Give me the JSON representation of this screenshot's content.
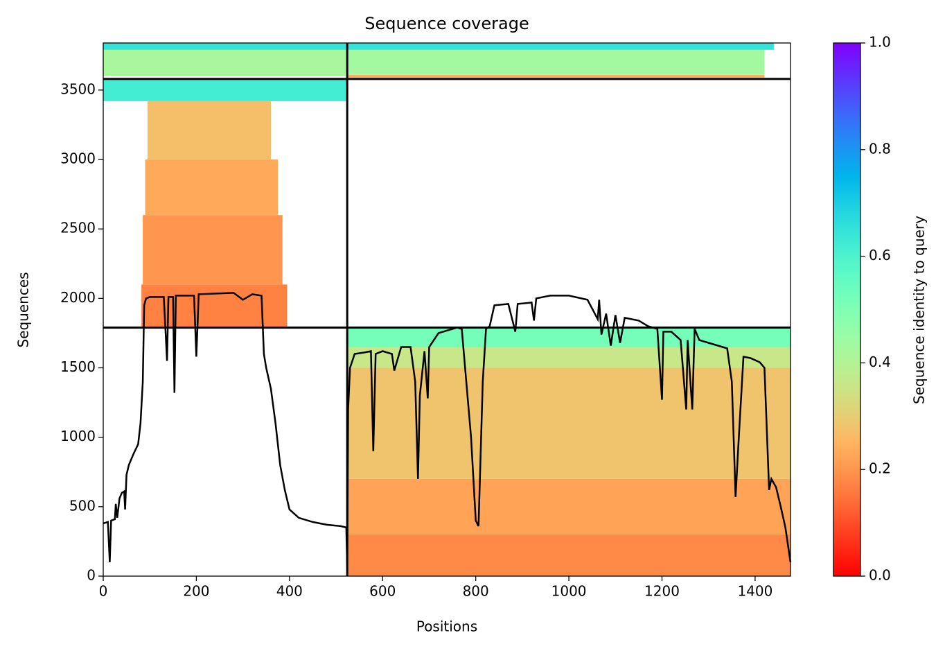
{
  "chart_data": {
    "type": "coverage",
    "title": "Sequence coverage",
    "xlabel": "Positions",
    "ylabel": "Sequences",
    "colorbar_label": "Sequence identity to query",
    "xlim": [
      0,
      1476
    ],
    "ylim": [
      0,
      3839
    ],
    "xticks": [
      0,
      200,
      400,
      600,
      800,
      1000,
      1200,
      1400
    ],
    "yticks": [
      0,
      500,
      1000,
      1500,
      2000,
      2500,
      3000,
      3500
    ],
    "clim": [
      0,
      1
    ],
    "cticks": [
      {
        "value": 0,
        "label": "0.0"
      },
      {
        "value": 0.2,
        "label": "0.2"
      },
      {
        "value": 0.4,
        "label": "0.4"
      },
      {
        "value": 0.6,
        "label": "0.6"
      },
      {
        "value": 0.8,
        "label": "0.8"
      },
      {
        "value": 1,
        "label": "1.0"
      }
    ],
    "colormap": "rainbow_r",
    "blocks": [
      {
        "x": [
          82,
          395
        ],
        "y": [
          1790,
          2100
        ],
        "identity": 0.17
      },
      {
        "x": [
          85,
          385
        ],
        "y": [
          2100,
          2600
        ],
        "identity": 0.2
      },
      {
        "x": [
          90,
          375
        ],
        "y": [
          2600,
          3000
        ],
        "identity": 0.23
      },
      {
        "x": [
          95,
          360
        ],
        "y": [
          3000,
          3420
        ],
        "identity": 0.27
      },
      {
        "x": [
          0,
          524
        ],
        "y": [
          3420,
          3580
        ],
        "identity": 0.62
      },
      {
        "x": [
          524,
          1476
        ],
        "y": [
          0,
          300
        ],
        "identity": 0.18
      },
      {
        "x": [
          524,
          1476
        ],
        "y": [
          300,
          700
        ],
        "identity": 0.22
      },
      {
        "x": [
          524,
          1476
        ],
        "y": [
          700,
          1500
        ],
        "identity": 0.28
      },
      {
        "x": [
          524,
          1476
        ],
        "y": [
          1500,
          1650
        ],
        "identity": 0.36
      },
      {
        "x": [
          524,
          1476
        ],
        "y": [
          1650,
          1790
        ],
        "identity": 0.52
      },
      {
        "x": [
          0,
          524
        ],
        "y": [
          3600,
          3790
        ],
        "identity": 0.42
      },
      {
        "x": [
          524,
          1420
        ],
        "y": [
          3590,
          3610
        ],
        "identity": 0.24
      },
      {
        "x": [
          524,
          1420
        ],
        "y": [
          3610,
          3790
        ],
        "identity": 0.43
      },
      {
        "x": [
          0,
          1440
        ],
        "y": [
          3790,
          3839
        ],
        "identity": 0.65
      }
    ],
    "hlines": [
      1790,
      3580
    ],
    "vlines": [
      524
    ],
    "line": {
      "color": "#000000",
      "x": [
        0,
        10,
        14,
        17,
        25,
        27,
        30,
        35,
        40,
        45,
        47,
        50,
        55,
        65,
        75,
        80,
        85,
        88,
        92,
        100,
        130,
        137,
        140,
        150,
        153,
        156,
        195,
        200,
        205,
        280,
        300,
        320,
        340,
        345,
        350,
        360,
        370,
        380,
        390,
        400,
        420,
        450,
        480,
        510,
        522,
        524,
        526,
        530,
        540,
        560,
        575,
        580,
        585,
        600,
        620,
        625,
        640,
        660,
        670,
        676,
        680,
        690,
        697,
        700,
        720,
        760,
        770,
        790,
        800,
        806,
        815,
        822,
        830,
        840,
        870,
        885,
        890,
        920,
        925,
        930,
        960,
        1000,
        1040,
        1062,
        1065,
        1070,
        1080,
        1090,
        1100,
        1110,
        1120,
        1150,
        1170,
        1190,
        1200,
        1203,
        1220,
        1240,
        1252,
        1255,
        1265,
        1270,
        1280,
        1300,
        1340,
        1350,
        1358,
        1365,
        1375,
        1390,
        1410,
        1420,
        1430,
        1435,
        1445,
        1455,
        1465,
        1476
      ],
      "values": [
        380,
        390,
        100,
        400,
        410,
        520,
        420,
        560,
        600,
        610,
        480,
        730,
        800,
        880,
        950,
        1100,
        1400,
        1950,
        2000,
        2010,
        2010,
        1550,
        2010,
        2010,
        1320,
        2020,
        2020,
        1580,
        2030,
        2040,
        1990,
        2030,
        2020,
        1600,
        1500,
        1350,
        1100,
        800,
        620,
        480,
        420,
        390,
        370,
        360,
        350,
        60,
        1200,
        1500,
        1600,
        1610,
        1620,
        900,
        1600,
        1620,
        1600,
        1480,
        1650,
        1650,
        1400,
        700,
        1300,
        1620,
        1280,
        1650,
        1750,
        1790,
        1780,
        1000,
        400,
        360,
        1400,
        1780,
        1800,
        1950,
        1960,
        1760,
        1960,
        1970,
        1840,
        2000,
        2020,
        2020,
        1990,
        1850,
        1990,
        1740,
        1890,
        1660,
        1880,
        1680,
        1860,
        1840,
        1800,
        1780,
        1270,
        1760,
        1760,
        1700,
        1200,
        1700,
        1200,
        1780,
        1700,
        1680,
        1640,
        1400,
        570,
        1000,
        1580,
        1570,
        1540,
        1500,
        620,
        700,
        640,
        500,
        350,
        100
      ]
    }
  }
}
